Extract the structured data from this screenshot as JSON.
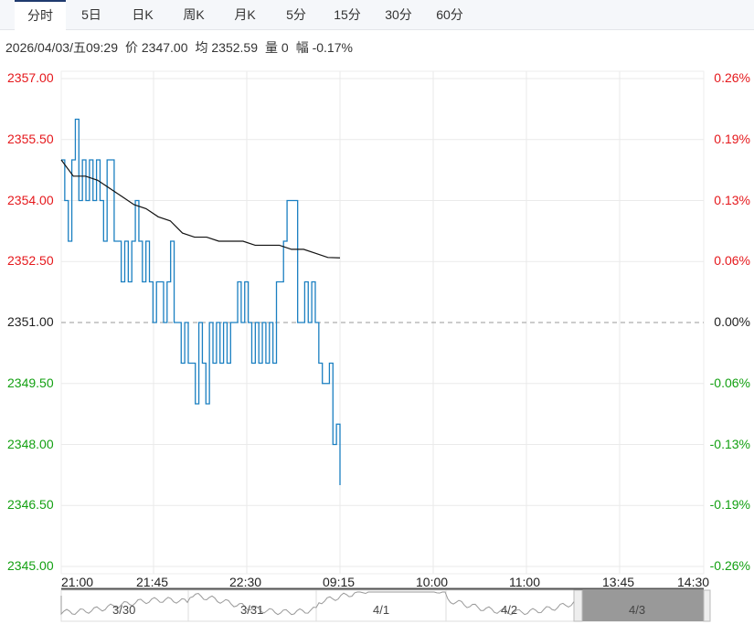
{
  "tabs": [
    "分时",
    "5日",
    "日K",
    "周K",
    "月K",
    "5分",
    "15分",
    "30分",
    "60分"
  ],
  "active_tab": 0,
  "info": {
    "datetime": "2026/04/03/五09:29",
    "price": "价 2347.00",
    "avg": "均 2352.59",
    "volume": "量 0",
    "change": "幅 -0.17%"
  },
  "left_axis": [
    "2357.00",
    "2355.50",
    "2354.00",
    "2352.50",
    "2351.00",
    "2349.50",
    "2348.00",
    "2346.50",
    "2345.00"
  ],
  "right_axis": [
    "0.26%",
    "0.19%",
    "0.13%",
    "0.06%",
    "0.00%",
    "-0.06%",
    "-0.13%",
    "-0.19%",
    "-0.26%"
  ],
  "time_axis": [
    "21:00",
    "21:45",
    "22:30",
    "09:15",
    "10:00",
    "11:00",
    "13:45",
    "14:30"
  ],
  "navigator_days": [
    "3/30",
    "3/31",
    "4/1",
    "4/2",
    "4/3"
  ],
  "colors": {
    "up": "#e5181c",
    "down": "#13a012",
    "price_line": "#1a7fc1",
    "avg_line": "#111111"
  },
  "chart_data": {
    "type": "line",
    "prev_close": 2351.0,
    "ylim": [
      2345.0,
      2357.0
    ],
    "price": [
      2355,
      2354,
      2353,
      2355,
      2356,
      2354,
      2355,
      2354,
      2355,
      2354,
      2355,
      2354,
      2353,
      2355,
      2355,
      2353,
      2353,
      2352,
      2353,
      2352,
      2353,
      2354,
      2353,
      2352,
      2353,
      2352,
      2351,
      2352,
      2352,
      2351,
      2352,
      2353,
      2351,
      2351,
      2350,
      2351,
      2350,
      2350,
      2349,
      2351,
      2350,
      2349,
      2351,
      2350,
      2351,
      2350,
      2351,
      2350,
      2351,
      2351,
      2352,
      2351,
      2352,
      2351,
      2350,
      2351,
      2350,
      2351,
      2350,
      2351,
      2350,
      2352,
      2352,
      2353,
      2354,
      2354,
      2354,
      2351,
      2351,
      2352,
      2351,
      2352,
      2351,
      2350,
      2349.5,
      2349.5,
      2350,
      2348,
      2348.5,
      2347
    ],
    "avg": [
      2355,
      2354.6,
      2354.6,
      2354.5,
      2354.3,
      2354.1,
      2353.9,
      2353.8,
      2353.6,
      2353.5,
      2353.2,
      2353.1,
      2353.1,
      2353,
      2353,
      2353,
      2352.9,
      2352.9,
      2352.9,
      2352.8,
      2352.8,
      2352.7,
      2352.6,
      2352.59
    ]
  }
}
